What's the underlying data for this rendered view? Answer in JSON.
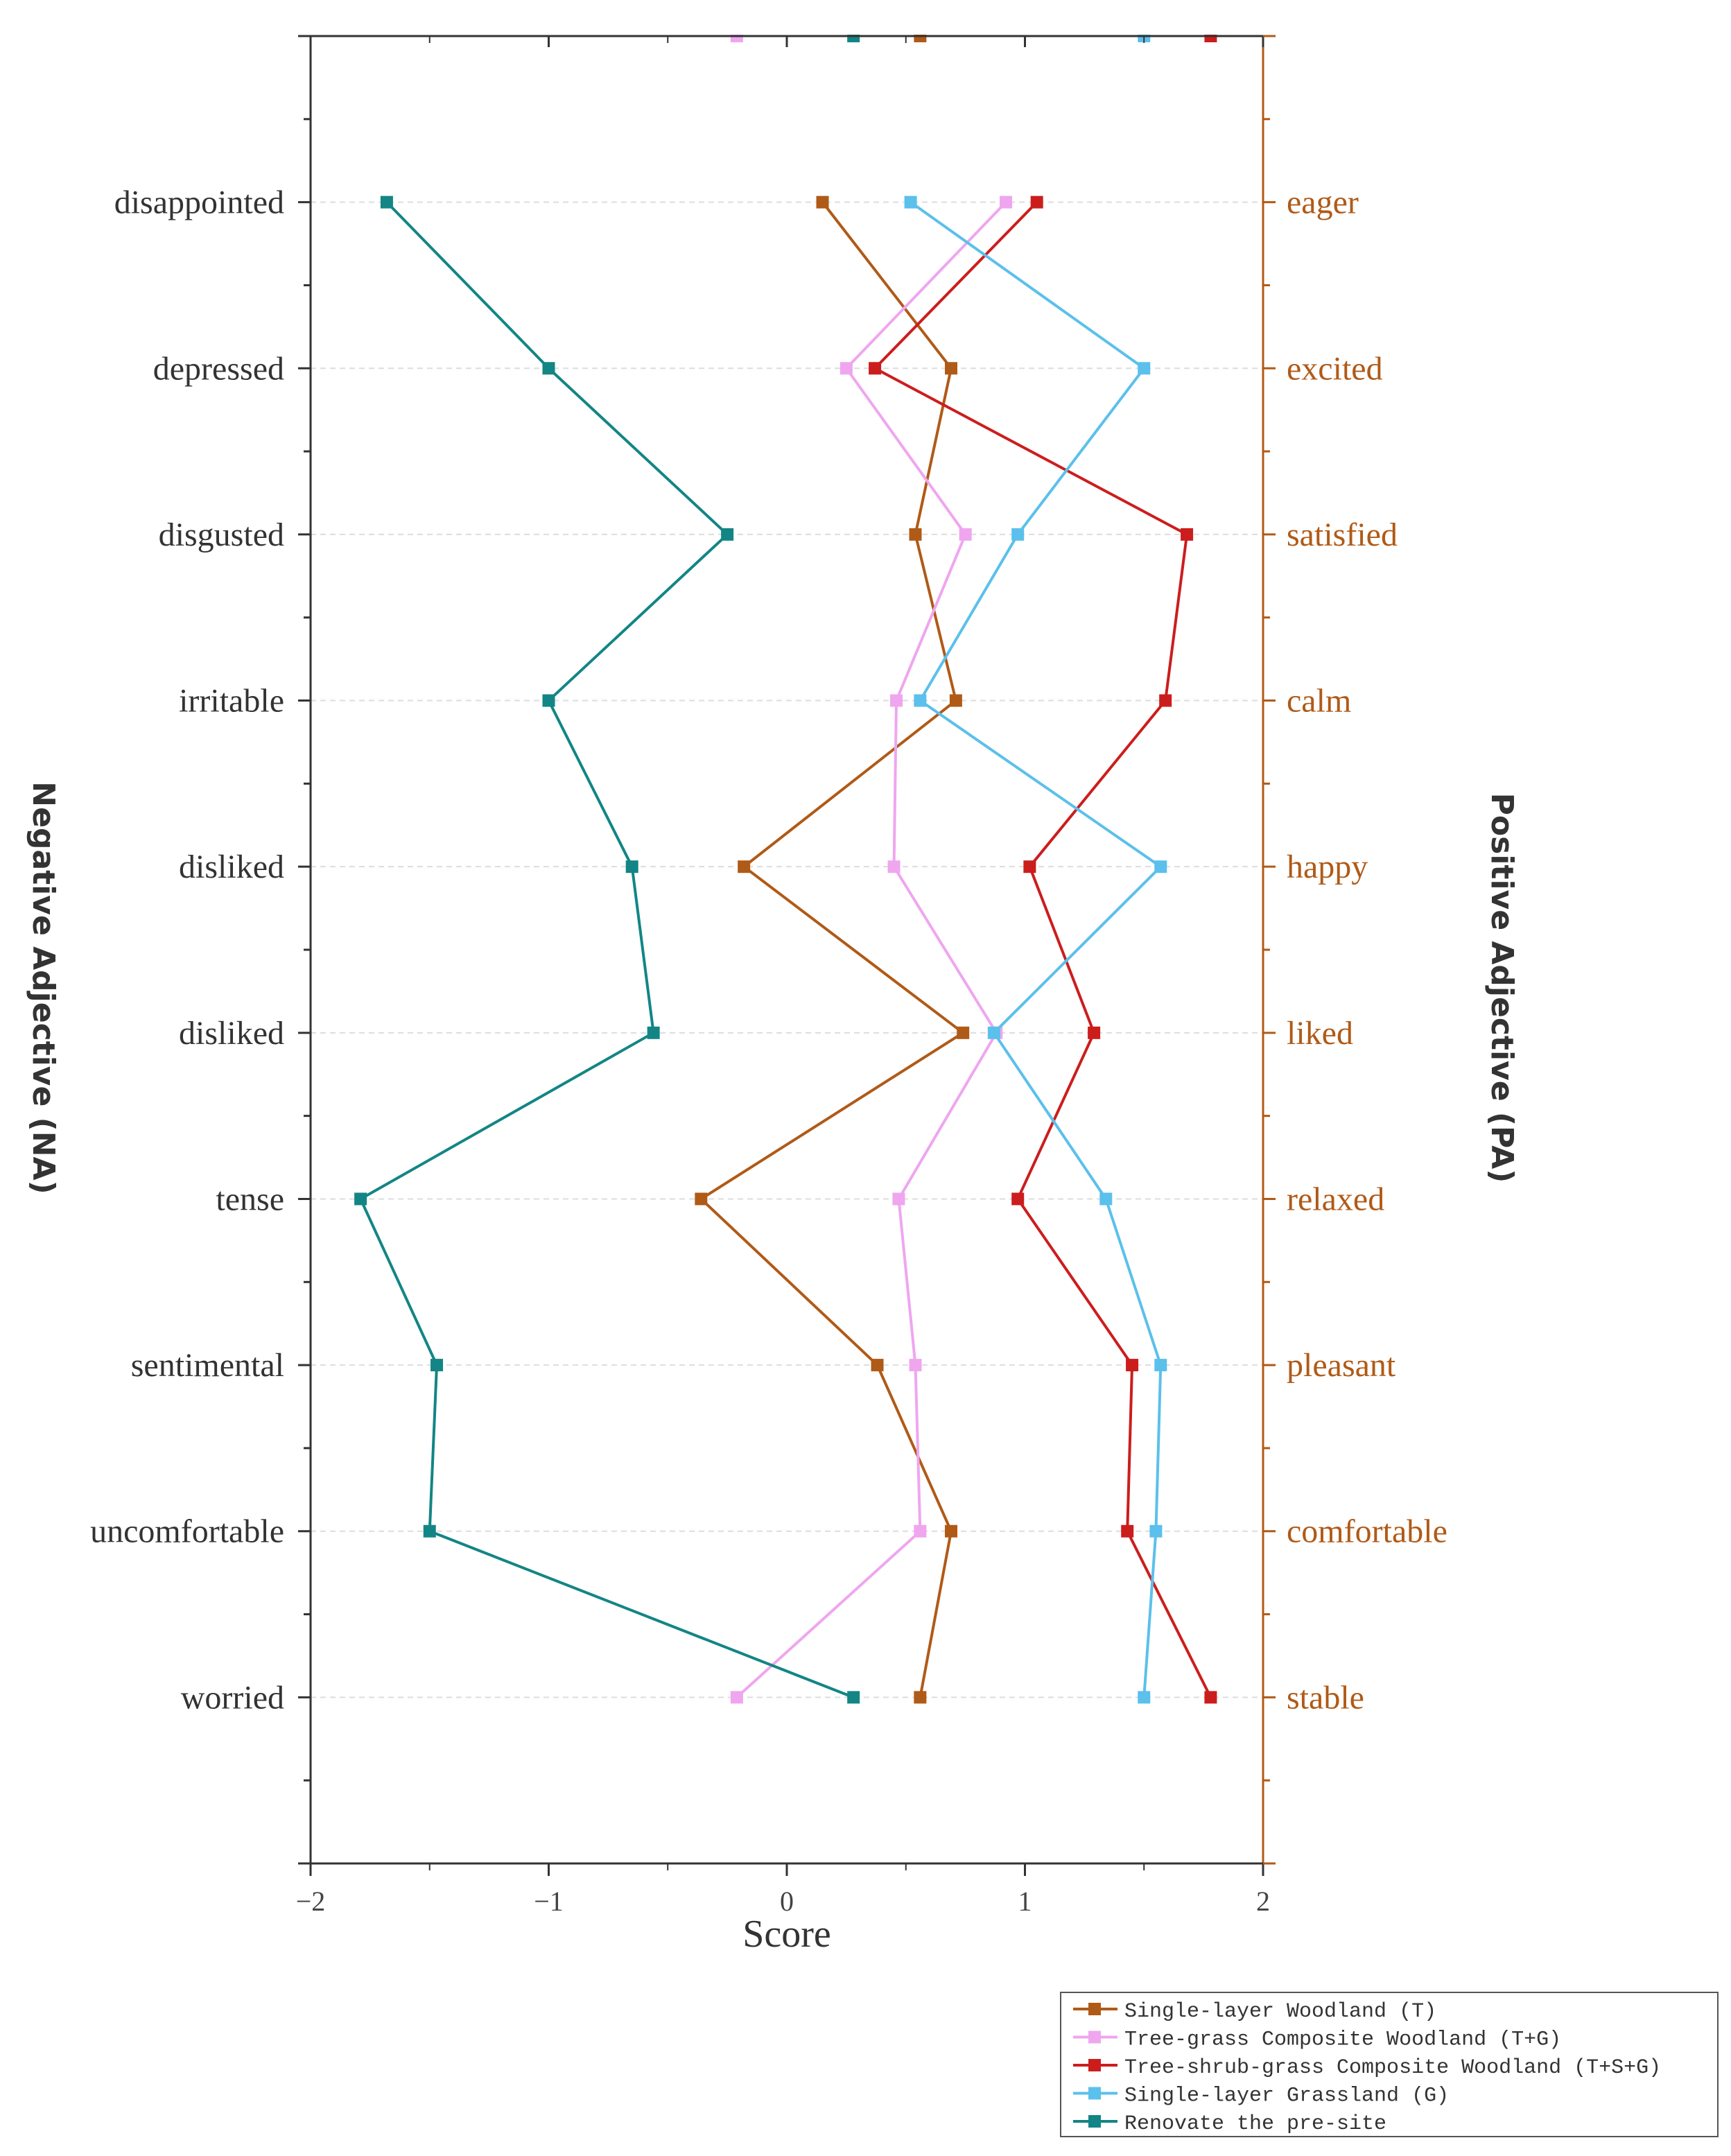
{
  "chart_data": {
    "type": "line",
    "title": "",
    "xlabel": "Score",
    "ylabel_left": "Negative Adjective (NA)",
    "ylabel_right": "Positive Adjective (PA)",
    "xlim": [
      -2,
      2
    ],
    "x_ticks": [
      -2,
      -1,
      0,
      1,
      2
    ],
    "x_tick_labels": [
      "−2",
      "−1",
      "0",
      "1",
      "2"
    ],
    "ylim": [
      0,
      11
    ],
    "grid": true,
    "legend_position": "bottom-right",
    "categories": [
      {
        "level": 1,
        "negative": "worried",
        "positive": "stable"
      },
      {
        "level": 2,
        "negative": "uncomfortable",
        "positive": "comfortable"
      },
      {
        "level": 3,
        "negative": "sentimental",
        "positive": "pleasant"
      },
      {
        "level": 4,
        "negative": "tense",
        "positive": "relaxed"
      },
      {
        "level": 5,
        "negative": "disliked",
        "positive": "liked"
      },
      {
        "level": 6,
        "negative": "disliked",
        "positive": "happy"
      },
      {
        "level": 7,
        "negative": "irritable",
        "positive": " calm"
      },
      {
        "level": 8,
        "negative": "disgusted",
        "positive": "satisfied"
      },
      {
        "level": 9,
        "negative": "depressed",
        "positive": "excited"
      },
      {
        "level": 10,
        "negative": "disappointed",
        "positive": "eager"
      }
    ],
    "series": [
      {
        "name": "Single-layer Woodland  (T)",
        "color": "#B05A17",
        "values": [
          0.56,
          0.69,
          0.38,
          -0.36,
          0.74,
          -0.18,
          0.71,
          0.54,
          0.69,
          0.15
        ]
      },
      {
        "name": "Tree-grass Composite Woodland (T+G)",
        "color": "#EFA6EF",
        "values": [
          -0.21,
          0.56,
          0.54,
          0.47,
          0.88,
          0.45,
          0.46,
          0.75,
          0.25,
          0.92
        ]
      },
      {
        "name": "Tree-shrub-grass Composite Woodland  (T+S+G)",
        "color": "#CC1D1D",
        "values": [
          1.78,
          1.43,
          1.45,
          0.97,
          1.29,
          1.02,
          1.59,
          1.68,
          0.37,
          1.05
        ]
      },
      {
        "name": "Single-layer Grassland (G)",
        "color": "#5BC0EB",
        "values": [
          1.5,
          1.55,
          1.57,
          1.34,
          0.87,
          1.57,
          0.56,
          0.97,
          1.5,
          0.52
        ]
      },
      {
        "name": "Renovate the pre-site",
        "color": "#138585",
        "values": [
          0.28,
          -1.5,
          -1.47,
          -1.79,
          -0.56,
          -0.65,
          -1.0,
          -0.25,
          -1.0,
          -1.68
        ]
      }
    ],
    "top_edge_markers": [
      {
        "series": 1,
        "value": -0.21
      },
      {
        "series": 4,
        "value": 0.28
      },
      {
        "series": 0,
        "value": 0.56
      },
      {
        "series": 3,
        "value": 1.5
      },
      {
        "series": 2,
        "value": 1.78
      }
    ]
  },
  "colors": {
    "axis_left": "#333333",
    "axis_right": "#B05A17",
    "grid": "#dddddd",
    "label_left": "#333333",
    "label_right": "#B05A17"
  }
}
